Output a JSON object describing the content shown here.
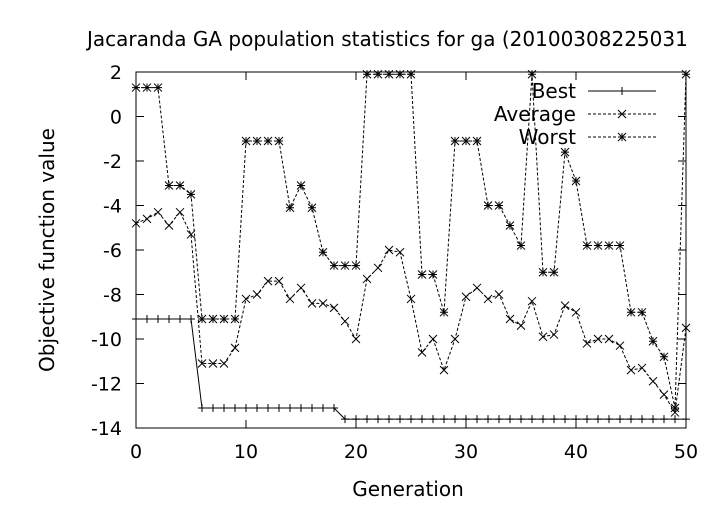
{
  "chart_data": {
    "type": "line",
    "title": "Jacaranda GA population statistics for ga (20100308225031",
    "xlabel": "Generation",
    "ylabel": "Objective function value",
    "xlim": [
      0,
      50
    ],
    "ylim": [
      -14,
      2
    ],
    "xticks": [
      0,
      10,
      20,
      30,
      40,
      50
    ],
    "yticks": [
      -14,
      -12,
      -10,
      -8,
      -6,
      -4,
      -2,
      0,
      2
    ],
    "grid": false,
    "legend_position": "top-right",
    "series": [
      {
        "name": "Best",
        "marker": "plus",
        "dash": "solid",
        "x": [
          0,
          1,
          2,
          3,
          4,
          5,
          6,
          7,
          8,
          9,
          10,
          11,
          12,
          13,
          14,
          15,
          16,
          17,
          18,
          19,
          20,
          21,
          22,
          23,
          24,
          25,
          26,
          27,
          28,
          29,
          30,
          31,
          32,
          33,
          34,
          35,
          36,
          37,
          38,
          39,
          40,
          41,
          42,
          43,
          44,
          45,
          46,
          47,
          48,
          49,
          50
        ],
        "values": [
          -9.1,
          -9.1,
          -9.1,
          -9.1,
          -9.1,
          -9.1,
          -13.1,
          -13.1,
          -13.1,
          -13.1,
          -13.1,
          -13.1,
          -13.1,
          -13.1,
          -13.1,
          -13.1,
          -13.1,
          -13.1,
          -13.1,
          -13.6,
          -13.6,
          -13.6,
          -13.6,
          -13.6,
          -13.6,
          -13.6,
          -13.6,
          -13.6,
          -13.6,
          -13.6,
          -13.6,
          -13.6,
          -13.6,
          -13.6,
          -13.6,
          -13.6,
          -13.6,
          -13.6,
          -13.6,
          -13.6,
          -13.6,
          -13.6,
          -13.6,
          -13.6,
          -13.6,
          -13.6,
          -13.6,
          -13.6,
          -13.6,
          -13.6,
          -13.6
        ]
      },
      {
        "name": "Average",
        "marker": "x",
        "dash": "dashed",
        "x": [
          0,
          1,
          2,
          3,
          4,
          5,
          6,
          7,
          8,
          9,
          10,
          11,
          12,
          13,
          14,
          15,
          16,
          17,
          18,
          19,
          20,
          21,
          22,
          23,
          24,
          25,
          26,
          27,
          28,
          29,
          30,
          31,
          32,
          33,
          34,
          35,
          36,
          37,
          38,
          39,
          40,
          41,
          42,
          43,
          44,
          45,
          46,
          47,
          48,
          49,
          50
        ],
        "values": [
          -4.8,
          -4.6,
          -4.3,
          -4.9,
          -4.3,
          -5.3,
          -11.1,
          -11.1,
          -11.1,
          -10.4,
          -8.2,
          -8.0,
          -7.4,
          -7.4,
          -8.2,
          -7.7,
          -8.4,
          -8.4,
          -8.6,
          -9.2,
          -10.0,
          -7.3,
          -6.8,
          -6.0,
          -6.1,
          -8.2,
          -10.6,
          -10.0,
          -11.4,
          -10.0,
          -8.1,
          -7.7,
          -8.2,
          -8.0,
          -9.1,
          -9.4,
          -8.3,
          -9.9,
          -9.8,
          -8.5,
          -8.8,
          -10.2,
          -10.0,
          -10.0,
          -10.3,
          -11.4,
          -11.3,
          -11.9,
          -12.5,
          -13.3,
          -9.5
        ]
      },
      {
        "name": "Worst",
        "marker": "star",
        "dash": "dashed",
        "x": [
          0,
          1,
          2,
          3,
          4,
          5,
          6,
          7,
          8,
          9,
          10,
          11,
          12,
          13,
          14,
          15,
          16,
          17,
          18,
          19,
          20,
          21,
          22,
          23,
          24,
          25,
          26,
          27,
          28,
          29,
          30,
          31,
          32,
          33,
          34,
          35,
          36,
          37,
          38,
          39,
          40,
          41,
          42,
          43,
          44,
          45,
          46,
          47,
          48,
          49,
          50
        ],
        "values": [
          1.3,
          1.3,
          1.3,
          -3.1,
          -3.1,
          -3.5,
          -9.1,
          -9.1,
          -9.1,
          -9.1,
          -1.1,
          -1.1,
          -1.1,
          -1.1,
          -4.1,
          -3.1,
          -4.1,
          -6.1,
          -6.7,
          -6.7,
          -6.7,
          1.9,
          1.9,
          1.9,
          1.9,
          1.9,
          -7.1,
          -7.1,
          -8.8,
          -1.1,
          -1.1,
          -1.1,
          -4.0,
          -4.0,
          -4.9,
          -5.8,
          1.9,
          -7.0,
          -7.0,
          -1.6,
          -2.9,
          -5.8,
          -5.8,
          -5.8,
          -5.8,
          -8.8,
          -8.8,
          -10.1,
          -10.8,
          -13.1,
          1.9
        ]
      }
    ]
  }
}
